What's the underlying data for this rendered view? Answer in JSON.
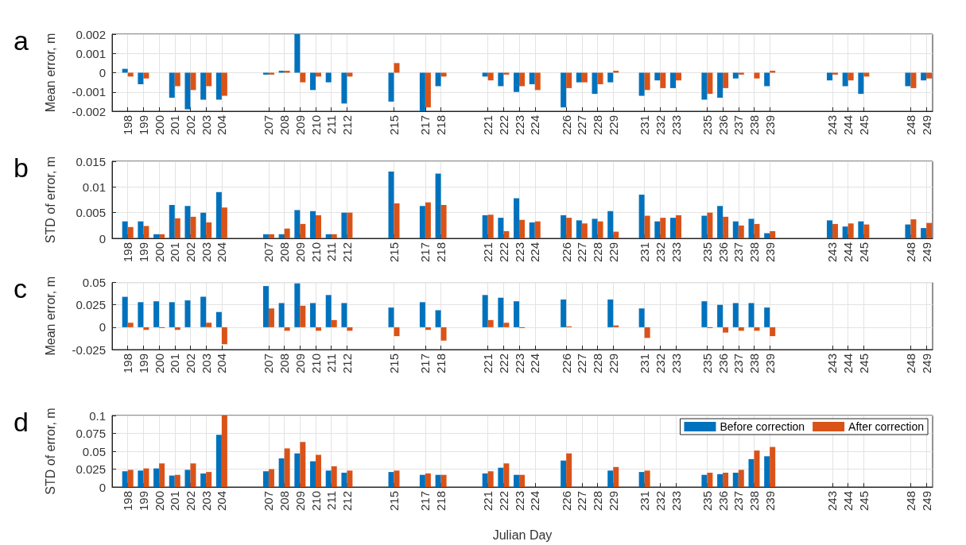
{
  "chart_data": [
    {
      "type": "bar",
      "title": "a",
      "ylabel": "Mean error, m",
      "x": [
        198,
        199,
        200,
        201,
        202,
        203,
        204,
        207,
        208,
        209,
        210,
        211,
        212,
        215,
        217,
        218,
        221,
        222,
        223,
        224,
        226,
        227,
        228,
        229,
        231,
        232,
        233,
        235,
        236,
        237,
        238,
        239,
        243,
        244,
        245,
        248,
        249
      ],
      "series": [
        {
          "color": "#0072bd",
          "values": [
            0.0002,
            -0.0006,
            null,
            -0.0013,
            -0.0019,
            -0.0014,
            -0.0014,
            -0.0001,
            0.0001,
            0.002,
            -0.0009,
            -0.0005,
            -0.0016,
            -0.0015,
            -0.002,
            -0.0007,
            -0.0002,
            -0.0007,
            -0.001,
            -0.0006,
            -0.0018,
            -0.0005,
            -0.0011,
            -0.0005,
            -0.0012,
            -0.0004,
            -0.0008,
            -0.0014,
            -0.0013,
            -0.0003,
            null,
            -0.0007,
            -0.0004,
            -0.0007,
            -0.0011,
            -0.0007,
            -0.0004
          ]
        },
        {
          "color": "#d95319",
          "values": [
            -0.0002,
            -0.0003,
            null,
            -0.0007,
            -0.0009,
            -0.0007,
            -0.0012,
            -0.0001,
            0.0001,
            -0.0005,
            -0.0002,
            null,
            -0.0002,
            0.0005,
            -0.0018,
            -0.0002,
            -0.0004,
            -0.0001,
            -0.0007,
            -0.0009,
            -0.0008,
            -0.0005,
            -0.0006,
            0.0001,
            -0.0009,
            -0.0008,
            -0.0004,
            -0.0011,
            -0.0008,
            -0.0001,
            -0.0003,
            0.0001,
            -0.0001,
            -0.0004,
            -0.0002,
            -0.0008,
            -0.0003
          ]
        }
      ],
      "xlim": [
        197,
        249.4
      ],
      "xticks": [
        198,
        199,
        200,
        201,
        202,
        203,
        204,
        207,
        208,
        209,
        210,
        211,
        212,
        215,
        217,
        218,
        221,
        222,
        223,
        224,
        226,
        227,
        228,
        229,
        231,
        232,
        233,
        235,
        236,
        237,
        238,
        239,
        243,
        244,
        245,
        248,
        249
      ],
      "ylim": [
        -0.002,
        0.002
      ],
      "yticks": [
        -0.002,
        -0.001,
        0,
        0.001,
        0.002
      ],
      "grid": true,
      "legend": false
    },
    {
      "type": "bar",
      "title": "b",
      "ylabel": "STD of error, m",
      "x": [
        198,
        199,
        200,
        201,
        202,
        203,
        204,
        207,
        208,
        209,
        210,
        211,
        212,
        215,
        217,
        218,
        221,
        222,
        223,
        224,
        226,
        227,
        228,
        229,
        231,
        232,
        233,
        235,
        236,
        237,
        238,
        239,
        243,
        244,
        245,
        248,
        249
      ],
      "series": [
        {
          "color": "#0072bd",
          "values": [
            0.0033,
            0.0033,
            0.0008,
            0.0065,
            0.0063,
            0.005,
            0.009,
            0.0008,
            0.0008,
            0.0055,
            0.0053,
            0.0008,
            0.005,
            0.013,
            0.0063,
            0.0126,
            0.0045,
            0.004,
            0.0078,
            0.0031,
            0.0045,
            0.0035,
            0.0038,
            0.0053,
            0.0085,
            0.0033,
            0.004,
            0.0044,
            0.0063,
            0.0033,
            0.0038,
            0.001,
            0.0035,
            0.0023,
            0.0033,
            0.0027,
            0.002
          ]
        },
        {
          "color": "#d95319",
          "values": [
            0.0022,
            0.0024,
            0.0008,
            0.0039,
            0.0042,
            0.0031,
            0.006,
            0.0008,
            0.0019,
            0.0028,
            0.0045,
            0.0008,
            0.005,
            0.0068,
            0.007,
            0.0065,
            0.0046,
            0.0014,
            0.0036,
            0.0033,
            0.004,
            0.0029,
            0.0033,
            0.0013,
            0.0044,
            0.004,
            0.0045,
            0.005,
            0.0042,
            0.0025,
            0.0028,
            0.0014,
            0.0028,
            0.0029,
            0.0027,
            0.0037,
            0.003
          ]
        }
      ],
      "xlim": [
        197,
        249.4
      ],
      "xticks": [
        198,
        199,
        200,
        201,
        202,
        203,
        204,
        207,
        208,
        209,
        210,
        211,
        212,
        215,
        217,
        218,
        221,
        222,
        223,
        224,
        226,
        227,
        228,
        229,
        231,
        232,
        233,
        235,
        236,
        237,
        238,
        239,
        243,
        244,
        245,
        248,
        249
      ],
      "ylim": [
        0,
        0.015
      ],
      "yticks": [
        0,
        0.005,
        0.01,
        0.015
      ],
      "grid": true,
      "legend": false
    },
    {
      "type": "bar",
      "title": "c",
      "ylabel": "Mean error, m",
      "series": [
        {
          "color": "#0072bd",
          "x": [
            198,
            199,
            200,
            201,
            202,
            203,
            204,
            207,
            208,
            209,
            210,
            211,
            212,
            215,
            217,
            218,
            221,
            222,
            223,
            226,
            229,
            231,
            235,
            236,
            237,
            238,
            239
          ],
          "values": [
            0.034,
            0.028,
            0.029,
            0.028,
            0.03,
            0.034,
            0.017,
            0.046,
            0.027,
            0.049,
            0.027,
            0.036,
            0.027,
            0.022,
            0.028,
            0.019,
            0.036,
            0.033,
            0.029,
            0.031,
            0.031,
            0.021,
            0.029,
            0.025,
            0.027,
            0.027,
            0.022
          ]
        },
        {
          "color": "#d95319",
          "x": [
            198,
            199,
            200,
            201,
            202,
            203,
            204,
            207,
            208,
            209,
            210,
            211,
            212,
            215,
            217,
            218,
            221,
            222,
            223,
            226,
            229,
            231,
            235,
            236,
            237,
            238,
            239
          ],
          "values": [
            0.005,
            -0.003,
            -0.001,
            -0.003,
            null,
            0.005,
            -0.019,
            0.021,
            -0.004,
            0.024,
            -0.004,
            0.008,
            -0.004,
            -0.01,
            -0.003,
            -0.015,
            0.008,
            0.005,
            -0.001,
            0.001,
            0.002,
            -0.012,
            -0.001,
            -0.006,
            -0.004,
            -0.004,
            -0.01
          ]
        }
      ],
      "xlim": [
        197,
        249.4
      ],
      "xticks": [
        198,
        199,
        200,
        201,
        202,
        203,
        204,
        207,
        208,
        209,
        210,
        211,
        212,
        215,
        217,
        218,
        221,
        222,
        223,
        224,
        226,
        227,
        228,
        229,
        231,
        232,
        233,
        235,
        236,
        237,
        238,
        239,
        243,
        244,
        245,
        248,
        249
      ],
      "ylim": [
        -0.025,
        0.05
      ],
      "yticks": [
        -0.025,
        0,
        0.025,
        0.05
      ],
      "grid": true,
      "legend": false
    },
    {
      "type": "bar",
      "title": "d",
      "ylabel": "STD of error, m",
      "xlabel": "Julian Day",
      "series": [
        {
          "name": "Before correction",
          "color": "#0072bd",
          "x": [
            198,
            199,
            200,
            201,
            202,
            203,
            204,
            207,
            208,
            209,
            210,
            211,
            212,
            215,
            217,
            218,
            221,
            222,
            223,
            226,
            229,
            231,
            235,
            236,
            237,
            238,
            239
          ],
          "values": [
            0.022,
            0.023,
            0.026,
            0.016,
            0.024,
            0.019,
            0.073,
            0.022,
            0.04,
            0.047,
            0.036,
            0.023,
            0.02,
            0.021,
            0.017,
            0.017,
            0.019,
            0.027,
            0.017,
            0.037,
            0.023,
            0.021,
            0.017,
            0.018,
            0.02,
            0.039,
            0.043
          ]
        },
        {
          "name": "After correction",
          "color": "#d95319",
          "x": [
            198,
            199,
            200,
            201,
            202,
            203,
            204,
            207,
            208,
            209,
            210,
            211,
            212,
            215,
            217,
            218,
            221,
            222,
            223,
            226,
            229,
            231,
            235,
            236,
            237,
            238,
            239
          ],
          "values": [
            0.024,
            0.026,
            0.033,
            0.017,
            0.033,
            0.021,
            0.1,
            0.025,
            0.054,
            0.063,
            0.045,
            0.029,
            0.023,
            0.023,
            0.019,
            0.017,
            0.022,
            0.033,
            0.017,
            0.047,
            0.028,
            0.023,
            0.02,
            0.02,
            0.024,
            0.051,
            0.056
          ]
        }
      ],
      "xlim": [
        197,
        249.4
      ],
      "xticks": [
        198,
        199,
        200,
        201,
        202,
        203,
        204,
        207,
        208,
        209,
        210,
        211,
        212,
        215,
        217,
        218,
        221,
        222,
        223,
        224,
        226,
        227,
        228,
        229,
        231,
        232,
        233,
        235,
        236,
        237,
        238,
        239,
        243,
        244,
        245,
        248,
        249
      ],
      "ylim": [
        0,
        0.1
      ],
      "yticks": [
        0,
        0.025,
        0.05,
        0.075,
        0.1
      ],
      "grid": true,
      "legend": "top right"
    }
  ]
}
